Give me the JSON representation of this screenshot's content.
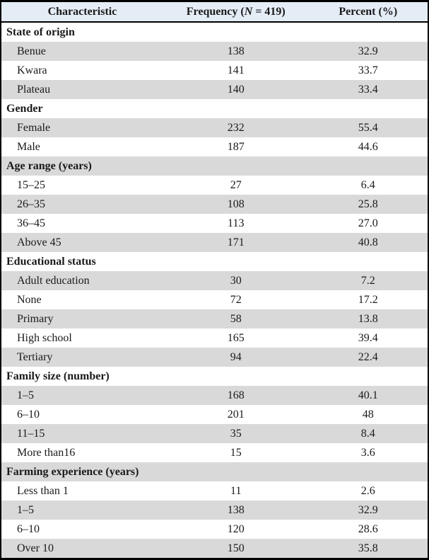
{
  "table": {
    "columns": [
      {
        "label": "Characteristic"
      },
      {
        "label_prefix": "Frequency (",
        "label_n": "N",
        "label_suffix": " = 419)"
      },
      {
        "label": "Percent (%)"
      }
    ],
    "rows": [
      {
        "type": "section",
        "label": "State of origin"
      },
      {
        "type": "data",
        "label": "Benue",
        "frequency": "138",
        "percent": "32.9"
      },
      {
        "type": "data",
        "label": "Kwara",
        "frequency": "141",
        "percent": "33.7"
      },
      {
        "type": "data",
        "label": "Plateau",
        "frequency": "140",
        "percent": "33.4"
      },
      {
        "type": "section",
        "label": "Gender"
      },
      {
        "type": "data",
        "label": "Female",
        "frequency": "232",
        "percent": "55.4"
      },
      {
        "type": "data",
        "label": "Male",
        "frequency": "187",
        "percent": "44.6"
      },
      {
        "type": "section",
        "label": "Age range (years)"
      },
      {
        "type": "data",
        "label": "15–25",
        "frequency": "27",
        "percent": "6.4"
      },
      {
        "type": "data",
        "label": "26–35",
        "frequency": "108",
        "percent": "25.8"
      },
      {
        "type": "data",
        "label": "36–45",
        "frequency": "113",
        "percent": "27.0"
      },
      {
        "type": "data",
        "label": "Above 45",
        "frequency": "171",
        "percent": "40.8"
      },
      {
        "type": "section",
        "label": "Educational status"
      },
      {
        "type": "data",
        "label": "Adult education",
        "frequency": "30",
        "percent": "7.2"
      },
      {
        "type": "data",
        "label": "None",
        "frequency": "72",
        "percent": "17.2"
      },
      {
        "type": "data",
        "label": "Primary",
        "frequency": "58",
        "percent": "13.8"
      },
      {
        "type": "data",
        "label": "High school",
        "frequency": "165",
        "percent": "39.4"
      },
      {
        "type": "data",
        "label": "Tertiary",
        "frequency": "94",
        "percent": "22.4"
      },
      {
        "type": "section",
        "label": "Family size (number)"
      },
      {
        "type": "data",
        "label": "1–5",
        "frequency": "168",
        "percent": "40.1"
      },
      {
        "type": "data",
        "label": "6–10",
        "frequency": "201",
        "percent": "48"
      },
      {
        "type": "data",
        "label": "11–15",
        "frequency": "35",
        "percent": "8.4"
      },
      {
        "type": "data",
        "label": "More than16",
        "frequency": "15",
        "percent": "3.6"
      },
      {
        "type": "section",
        "label": "Farming experience (years)"
      },
      {
        "type": "data",
        "label": "Less than 1",
        "frequency": "11",
        "percent": "2.6"
      },
      {
        "type": "data",
        "label": "1–5",
        "frequency": "138",
        "percent": "32.9"
      },
      {
        "type": "data",
        "label": "6–10",
        "frequency": "120",
        "percent": "28.6"
      },
      {
        "type": "data",
        "label": "Over 10",
        "frequency": "150",
        "percent": "35.8"
      }
    ],
    "colors": {
      "header_background": "#e4edf6",
      "shaded_row": "#d9d9d9",
      "border": "#000000",
      "text": "#1a1a1a"
    }
  }
}
